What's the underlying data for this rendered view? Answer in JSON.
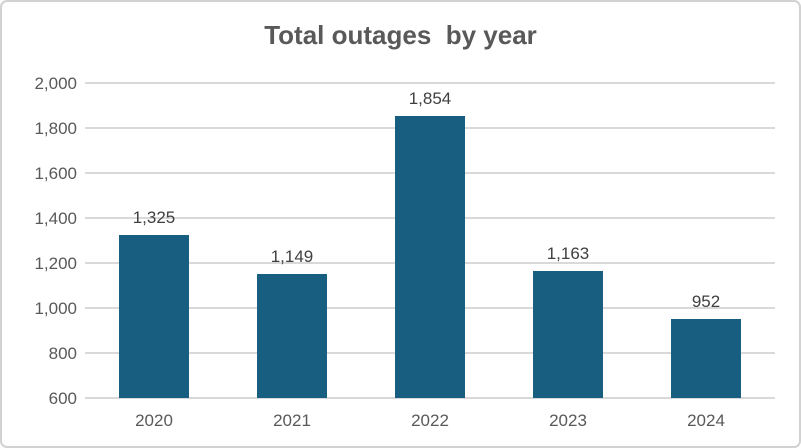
{
  "chart_data": {
    "type": "bar",
    "title": "Total outages  by year",
    "categories": [
      "2020",
      "2021",
      "2022",
      "2023",
      "2024"
    ],
    "values": [
      1325,
      1149,
      1854,
      1163,
      952
    ],
    "value_labels": [
      "1,325",
      "1,149",
      "1,854",
      "1,163",
      "952"
    ],
    "xlabel": "",
    "ylabel": "",
    "ylim": [
      600,
      2000
    ],
    "y_tick_step": 200,
    "y_tick_labels": [
      "600",
      "800",
      "1,000",
      "1,200",
      "1,400",
      "1,600",
      "1,800",
      "2,000"
    ],
    "grid": true,
    "legend_position": "none",
    "bar_color": "#175E80",
    "title_color": "#595959",
    "axis_text_color": "#595959",
    "gridline_color": "#D9D9D9"
  }
}
